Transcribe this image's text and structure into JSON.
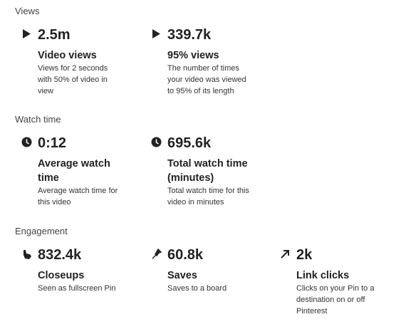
{
  "sections": [
    {
      "title": "Views",
      "metrics": [
        {
          "value": "2.5m",
          "label": "Video views",
          "description": "Views for 2 seconds with 50% of video in view"
        },
        {
          "value": "339.7k",
          "label": "95% views",
          "description": "The number of times your video was viewed to 95% of its length"
        }
      ]
    },
    {
      "title": "Watch time",
      "metrics": [
        {
          "value": "0:12",
          "label": "Average watch time",
          "description": "Average watch time for this video"
        },
        {
          "value": "695.6k",
          "label": "Total watch time (minutes)",
          "description": "Total watch time for this video in minutes"
        }
      ]
    },
    {
      "title": "Engagement",
      "metrics": [
        {
          "value": "832.4k",
          "label": "Closeups",
          "description": "Seen as fullscreen Pin"
        },
        {
          "value": "60.8k",
          "label": "Saves",
          "description": "Saves to a board"
        },
        {
          "value": "2k",
          "label": "Link clicks",
          "description": "Clicks on your Pin to a destination on or off Pinterest"
        }
      ]
    }
  ]
}
